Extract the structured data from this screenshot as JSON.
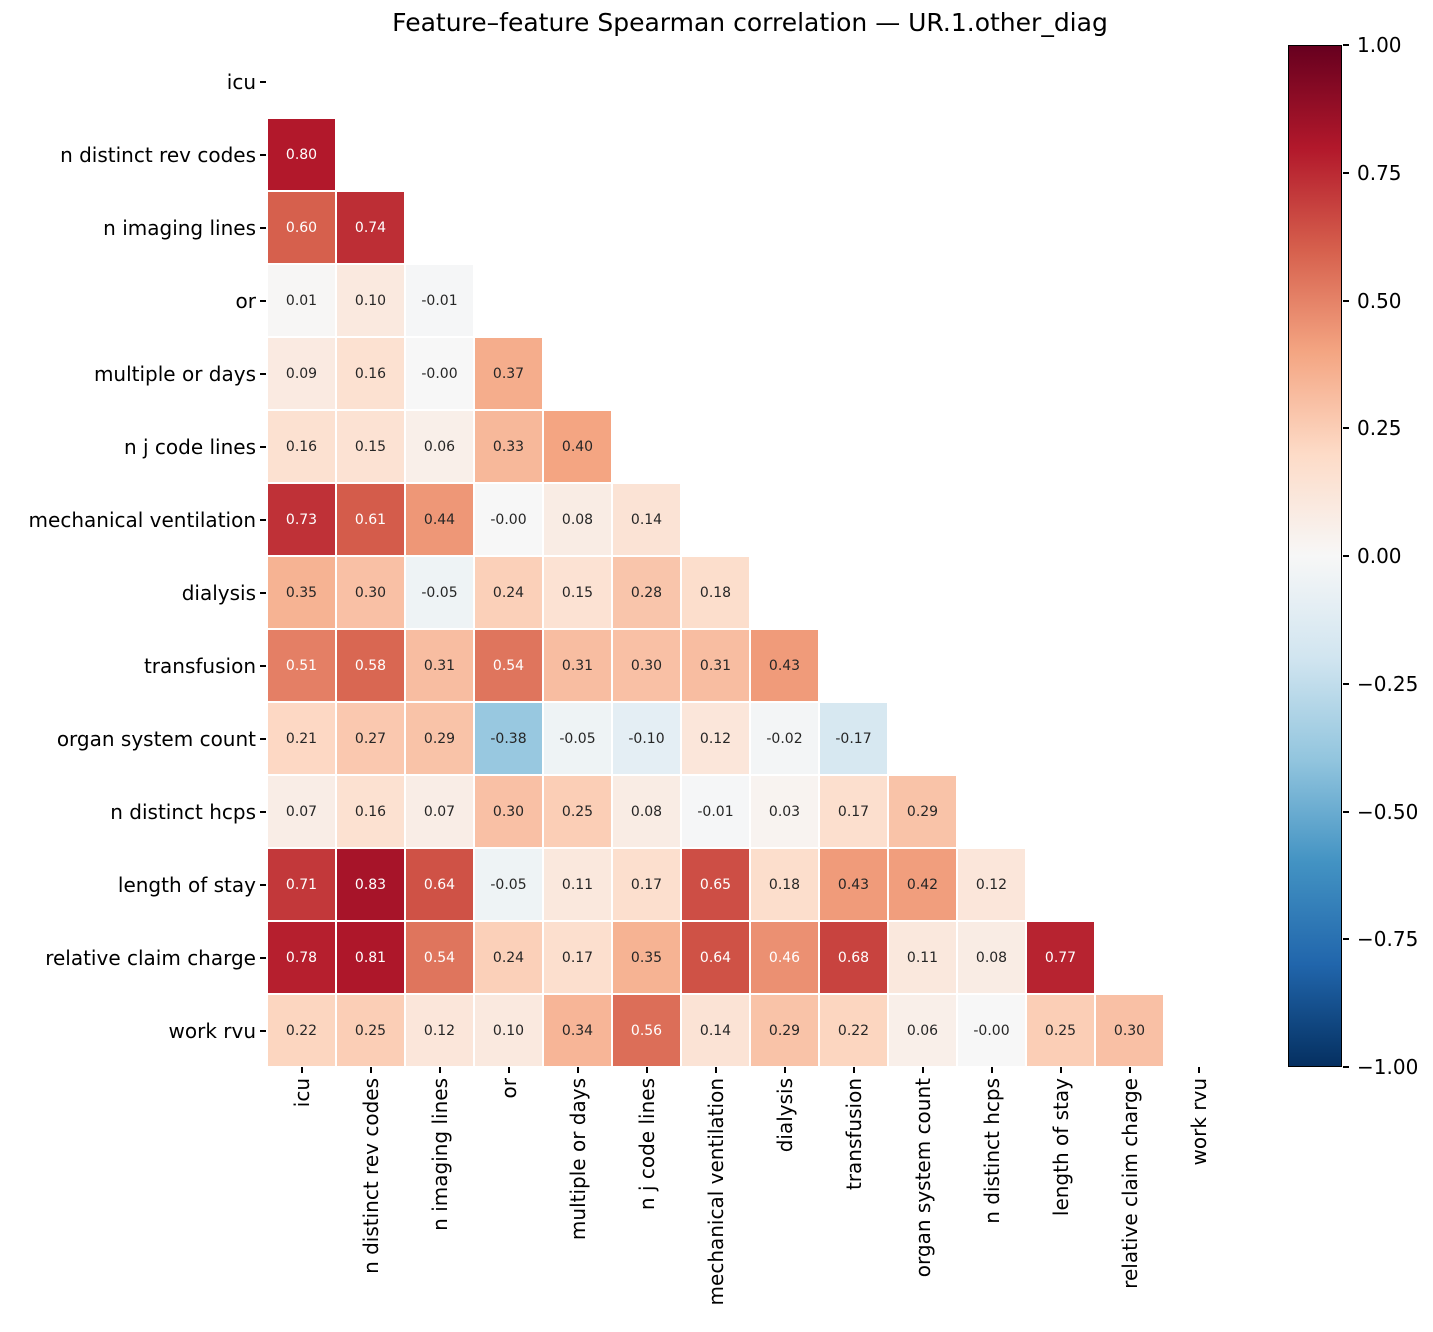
{
  "title": "Feature–feature Spearman correlation — UR.1.other_diag",
  "chart_data": {
    "type": "heatmap",
    "subtype": "lower-triangle-correlation-matrix",
    "statistic": "Spearman correlation",
    "colormap": "RdBu_r",
    "vmin": -1,
    "vmax": 1,
    "mask": "diagonal and upper triangle hidden",
    "grid_line_color": "#ffffff",
    "annot_dark_text_color": "#262626",
    "annot_light_text_color": "#ffffff",
    "labels": [
      "icu",
      "n distinct rev codes",
      "n imaging lines",
      "or",
      "multiple or days",
      "n j code lines",
      "mechanical ventilation",
      "dialysis",
      "transfusion",
      "organ system count",
      "n distinct hcps",
      "length of stay",
      "relative claim charge",
      "work rvu"
    ],
    "rows": [
      {
        "label": "icu",
        "values": []
      },
      {
        "label": "n distinct rev codes",
        "values": [
          "0.80"
        ]
      },
      {
        "label": "n imaging lines",
        "values": [
          "0.60",
          "0.74"
        ]
      },
      {
        "label": "or",
        "values": [
          "0.01",
          "0.10",
          "-0.01"
        ]
      },
      {
        "label": "multiple or days",
        "values": [
          "0.09",
          "0.16",
          "-0.00",
          "0.37"
        ]
      },
      {
        "label": "n j code lines",
        "values": [
          "0.16",
          "0.15",
          "0.06",
          "0.33",
          "0.40"
        ]
      },
      {
        "label": "mechanical ventilation",
        "values": [
          "0.73",
          "0.61",
          "0.44",
          "-0.00",
          "0.08",
          "0.14"
        ]
      },
      {
        "label": "dialysis",
        "values": [
          "0.35",
          "0.30",
          "-0.05",
          "0.24",
          "0.15",
          "0.28",
          "0.18"
        ]
      },
      {
        "label": "transfusion",
        "values": [
          "0.51",
          "0.58",
          "0.31",
          "0.54",
          "0.31",
          "0.30",
          "0.31",
          "0.43"
        ]
      },
      {
        "label": "organ system count",
        "values": [
          "0.21",
          "0.27",
          "0.29",
          "-0.38",
          "-0.05",
          "-0.10",
          "0.12",
          "-0.02",
          "-0.17"
        ]
      },
      {
        "label": "n distinct hcps",
        "values": [
          "0.07",
          "0.16",
          "0.07",
          "0.30",
          "0.25",
          "0.08",
          "-0.01",
          "0.03",
          "0.17",
          "0.29"
        ]
      },
      {
        "label": "length of stay",
        "values": [
          "0.71",
          "0.83",
          "0.64",
          "-0.05",
          "0.11",
          "0.17",
          "0.65",
          "0.18",
          "0.43",
          "0.42",
          "0.12"
        ]
      },
      {
        "label": "relative claim charge",
        "values": [
          "0.78",
          "0.81",
          "0.54",
          "0.24",
          "0.17",
          "0.35",
          "0.64",
          "0.46",
          "0.68",
          "0.11",
          "0.08",
          "0.77"
        ]
      },
      {
        "label": "work rvu",
        "values": [
          "0.22",
          "0.25",
          "0.12",
          "0.10",
          "0.34",
          "0.56",
          "0.14",
          "0.29",
          "0.22",
          "0.06",
          "-0.00",
          "0.25",
          "0.30"
        ]
      }
    ],
    "colorbar": {
      "tick_labels": [
        "1.00",
        "0.75",
        "0.50",
        "0.25",
        "0.00",
        "−0.25",
        "−0.50",
        "−0.75",
        "−1.00"
      ],
      "position": "right"
    },
    "colormap_anchors_low_to_high": [
      "#053061",
      "#2166ac",
      "#4393c3",
      "#92c5de",
      "#d1e5f0",
      "#f7f7f7",
      "#fddbc7",
      "#f4a582",
      "#d6604d",
      "#b2182b",
      "#67001f"
    ]
  }
}
